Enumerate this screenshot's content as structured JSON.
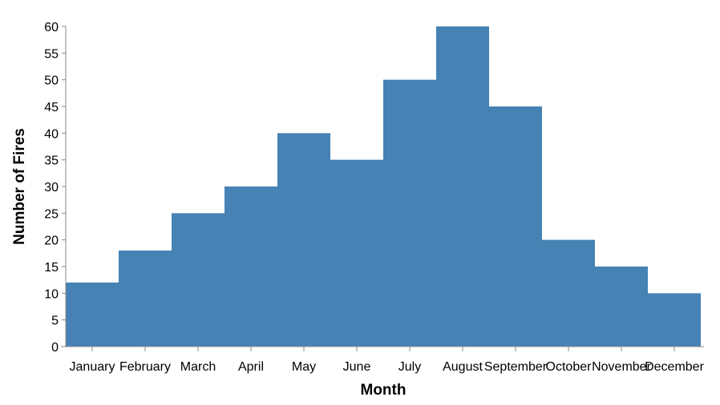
{
  "chart_data": {
    "type": "area",
    "interpolation": "step",
    "categories": [
      "January",
      "February",
      "March",
      "April",
      "May",
      "June",
      "July",
      "August",
      "September",
      "October",
      "November",
      "December"
    ],
    "values": [
      12,
      18,
      25,
      30,
      40,
      35,
      50,
      60,
      45,
      20,
      15,
      10
    ],
    "xlabel": "Month",
    "ylabel": "Number of Fires",
    "ylim": [
      0,
      60
    ],
    "yticks": [
      0,
      5,
      10,
      15,
      20,
      25,
      30,
      35,
      40,
      45,
      50,
      55,
      60
    ],
    "grid": false,
    "color": "#4682b4"
  }
}
